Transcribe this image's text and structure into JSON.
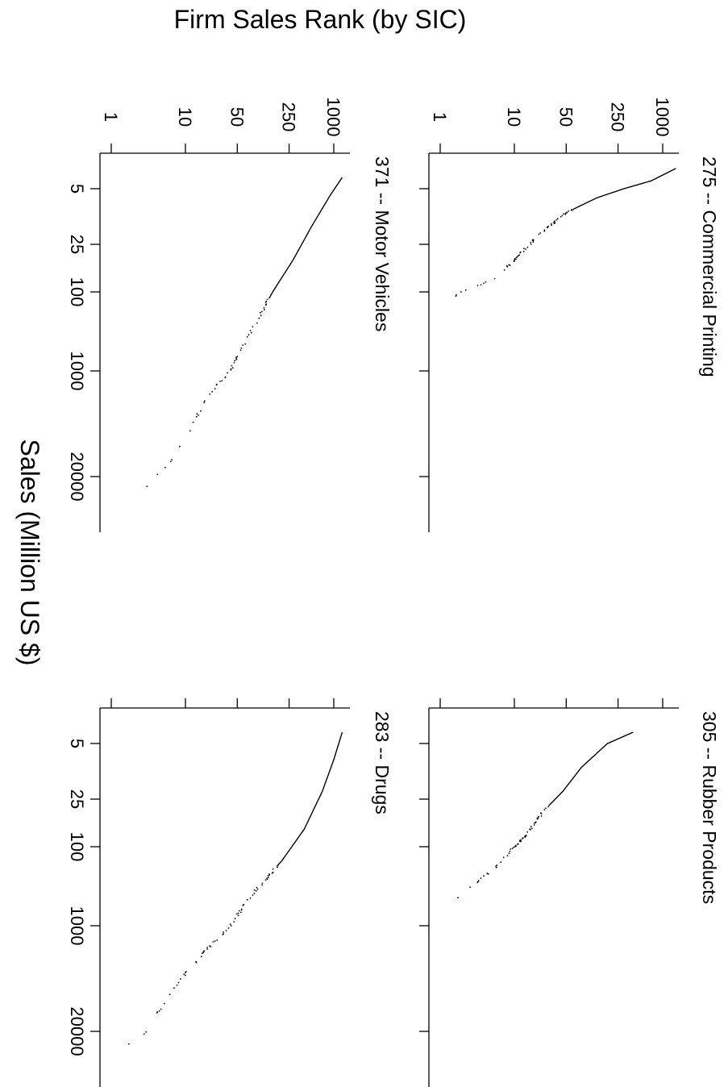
{
  "figure": {
    "ylabel": "Firm Sales Rank (by SIC)",
    "xlabel": "Sales (Million US $)"
  },
  "chart_data": [
    {
      "type": "scatter",
      "title": "275 -- Commercial Printing",
      "xscale": "log",
      "yscale": "log",
      "xticks": [
        5,
        25,
        100,
        1000,
        20000
      ],
      "yticks": [
        1,
        10,
        50,
        250,
        1000
      ],
      "xlim": [
        1,
        200000
      ],
      "ylim": [
        0.7,
        2000
      ],
      "series": [
        {
          "x": [
            2,
            3.5,
            5,
            6.5,
            10,
            20,
            40,
            70,
            100,
            150
          ],
          "y": [
            1500,
            700,
            300,
            130,
            50,
            20,
            10,
            5,
            2,
            1
          ]
        }
      ]
    },
    {
      "type": "scatter",
      "title": "305 -- Rubber Products",
      "xscale": "log",
      "yscale": "log",
      "xticks": [
        5,
        25,
        100,
        1000,
        20000
      ],
      "yticks": [
        1,
        10,
        50,
        250,
        1000
      ],
      "xlim": [
        1,
        200000
      ],
      "ylim": [
        0.7,
        2000
      ],
      "series": [
        {
          "x": [
            3,
            5,
            10,
            20,
            35,
            70,
            100,
            200,
            400,
            700
          ],
          "y": [
            400,
            180,
            80,
            45,
            25,
            15,
            10,
            5,
            2,
            1
          ]
        }
      ]
    },
    {
      "type": "scatter",
      "title": "371 -- Motor Vehicles",
      "xscale": "log",
      "yscale": "log",
      "xticks": [
        5,
        25,
        100,
        1000,
        20000
      ],
      "yticks": [
        1,
        10,
        50,
        250,
        1000
      ],
      "xlim": [
        1,
        200000
      ],
      "ylim": [
        0.7,
        2000
      ],
      "series": [
        {
          "x": [
            3,
            6,
            15,
            40,
            100,
            300,
            1000,
            2000,
            10000,
            30000,
            100000
          ],
          "y": [
            1300,
            900,
            500,
            280,
            150,
            80,
            40,
            20,
            8,
            3,
            1
          ]
        }
      ]
    },
    {
      "type": "scatter",
      "title": "283 -- Drugs",
      "xscale": "log",
      "yscale": "log",
      "xticks": [
        5,
        25,
        100,
        1000,
        20000
      ],
      "yticks": [
        1,
        10,
        50,
        250,
        1000
      ],
      "xlim": [
        1,
        200000
      ],
      "ylim": [
        0.7,
        2000
      ],
      "series": [
        {
          "x": [
            3,
            8,
            20,
            60,
            150,
            400,
            1000,
            2500,
            7000,
            20000,
            60000
          ],
          "y": [
            1300,
            1000,
            700,
            400,
            200,
            80,
            40,
            15,
            6,
            3,
            1
          ]
        }
      ]
    }
  ]
}
